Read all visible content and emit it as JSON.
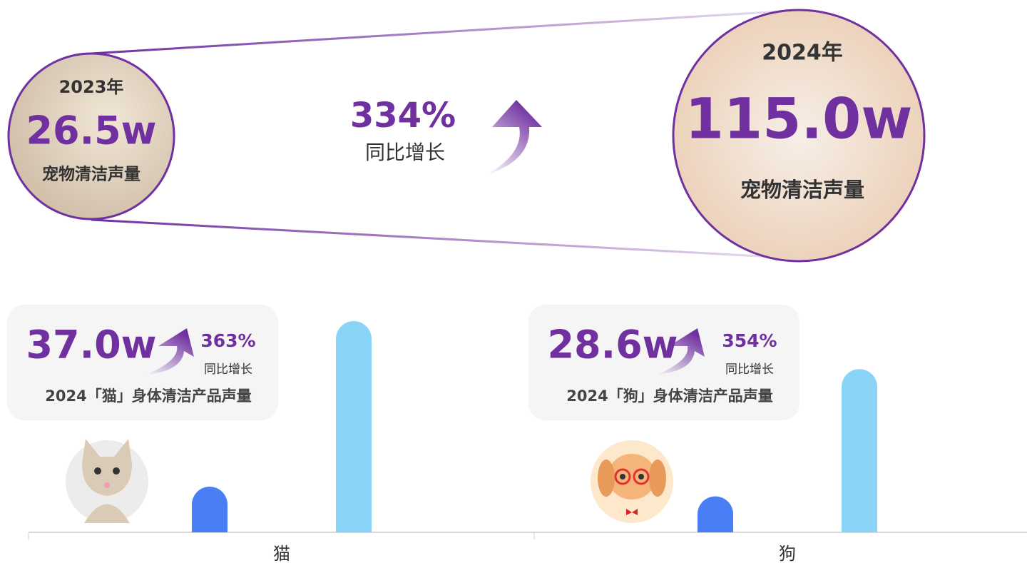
{
  "summary": {
    "before": {
      "year": "2023年",
      "value": "26.5w",
      "label": "宠物清洁声量"
    },
    "growth": {
      "value": "334%",
      "label": "同比增长"
    },
    "after": {
      "year": "2024年",
      "value": "115.0w",
      "label": "宠物清洁声量"
    }
  },
  "chart_data": {
    "type": "bar",
    "categories": [
      "猫",
      "狗"
    ],
    "series": [
      {
        "color": "#4a7ef5",
        "values": [
          8.0,
          6.3
        ]
      },
      {
        "color": "#8ad4f8",
        "values": [
          37.0,
          28.6
        ],
        "value_labels": [
          "37.0w",
          "28.6w"
        ]
      }
    ],
    "ylim": [
      0,
      40
    ],
    "callouts": [
      {
        "growth": "363%",
        "growth_label": "同比增长",
        "caption": "2024「猫」身体清洁产品声量"
      },
      {
        "growth": "354%",
        "growth_label": "同比增长",
        "caption": "2024「狗」身体清洁产品声量"
      }
    ]
  }
}
